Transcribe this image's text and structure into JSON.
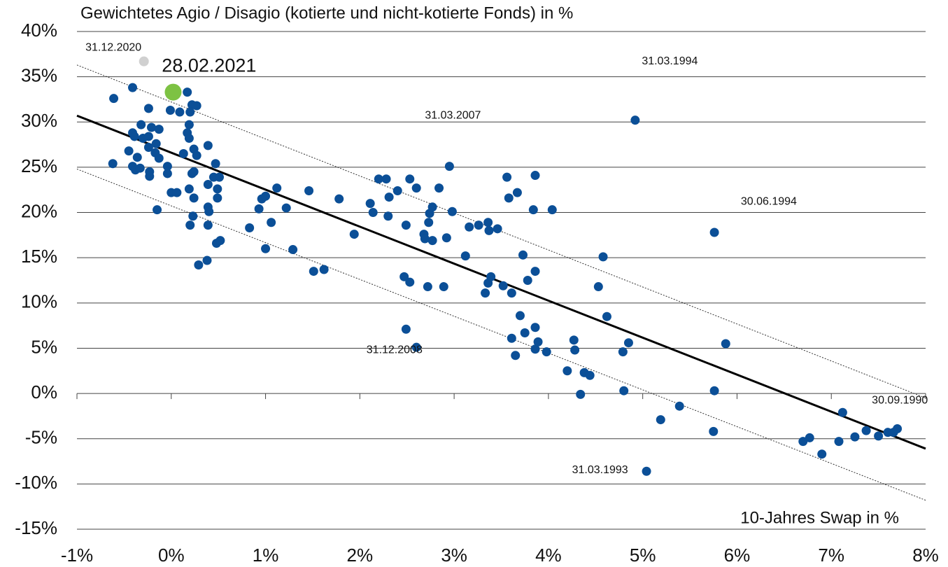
{
  "chart_data": {
    "type": "scatter",
    "title": "Gewichtetes Agio / Disagio (kotierte und nicht-kotierte Fonds) in %",
    "x_label": "10-Jahres Swap in %",
    "xlim": [
      -1,
      8
    ],
    "ylim": [
      -15,
      40
    ],
    "xticks": [
      {
        "value": -1,
        "label": "-1%"
      },
      {
        "value": 0,
        "label": "0%"
      },
      {
        "value": 1,
        "label": "1%"
      },
      {
        "value": 2,
        "label": "2%"
      },
      {
        "value": 3,
        "label": "3%"
      },
      {
        "value": 4,
        "label": "4%"
      },
      {
        "value": 5,
        "label": "5%"
      },
      {
        "value": 6,
        "label": "6%"
      },
      {
        "value": 7,
        "label": "7%"
      },
      {
        "value": 8,
        "label": "8%"
      }
    ],
    "yticks": [
      {
        "value": 40,
        "label": "40%"
      },
      {
        "value": 35,
        "label": "35%"
      },
      {
        "value": 30,
        "label": "30%"
      },
      {
        "value": 25,
        "label": "25%"
      },
      {
        "value": 20,
        "label": "20%"
      },
      {
        "value": 15,
        "label": "15%"
      },
      {
        "value": 10,
        "label": "10%"
      },
      {
        "value": 5,
        "label": "5%"
      },
      {
        "value": 0,
        "label": "0%"
      },
      {
        "value": -5,
        "label": "-5%"
      },
      {
        "value": -10,
        "label": "-10%"
      },
      {
        "value": -15,
        "label": "-15%"
      }
    ],
    "grid": true,
    "points": {
      "color": "#0b4f97",
      "x": [
        -0.61,
        -0.62,
        -0.41,
        -0.45,
        -0.41,
        -0.39,
        -0.36,
        -0.41,
        -0.38,
        -0.33,
        -0.32,
        -0.3,
        -0.24,
        -0.24,
        -0.24,
        -0.21,
        -0.23,
        -0.23,
        -0.16,
        -0.17,
        -0.13,
        -0.13,
        -0.15,
        -0.04,
        -0.04,
        0.0,
        0.06,
        -0.01,
        0.09,
        0.17,
        0.22,
        0.27,
        0.2,
        0.19,
        0.17,
        0.19,
        0.13,
        0.24,
        0.27,
        0.22,
        0.24,
        0.39,
        0.19,
        0.24,
        0.39,
        0.47,
        0.45,
        0.51,
        0.49,
        0.49,
        0.39,
        0.4,
        0.23,
        0.2,
        0.39,
        0.48,
        0.52,
        0.38,
        0.29,
        0.83,
        0.93,
        0.96,
        1.0,
        1.12,
        1.06,
        1.0,
        1.22,
        1.29,
        1.46,
        1.51,
        1.62,
        1.78,
        1.94,
        2.11,
        2.14,
        2.2,
        2.28,
        2.3,
        2.31,
        2.4,
        2.49,
        2.53,
        2.6,
        2.47,
        2.53,
        2.49,
        2.6,
        2.68,
        2.69,
        2.73,
        2.74,
        2.77,
        2.77,
        2.84,
        2.72,
        2.89,
        2.92,
        2.95,
        2.98,
        3.12,
        3.16,
        3.26,
        3.36,
        3.37,
        3.46,
        3.33,
        3.36,
        3.39,
        3.52,
        3.61,
        3.56,
        3.58,
        3.67,
        3.86,
        3.84,
        3.73,
        3.78,
        3.86,
        4.04,
        3.7,
        3.86,
        3.75,
        3.61,
        3.65,
        3.86,
        3.89,
        3.98,
        4.2,
        4.27,
        4.28,
        4.38,
        4.44,
        4.34,
        4.58,
        4.53,
        4.62,
        4.92,
        4.85,
        4.79,
        4.8,
        5.19,
        5.04,
        5.39,
        5.76,
        5.88,
        5.76,
        5.75,
        6.7,
        6.77,
        6.9,
        7.08,
        7.12,
        7.25,
        7.37,
        7.5,
        7.6,
        7.66,
        7.7
      ],
      "y": [
        32.6,
        25.4,
        33.8,
        26.8,
        28.8,
        28.4,
        26.1,
        25.1,
        24.7,
        24.9,
        29.7,
        28.2,
        28.4,
        27.2,
        31.5,
        29.4,
        24.5,
        24.0,
        27.6,
        26.6,
        26.0,
        29.2,
        20.3,
        25.1,
        24.3,
        22.2,
        22.2,
        31.3,
        31.1,
        33.3,
        31.9,
        31.8,
        31.1,
        29.7,
        28.8,
        28.2,
        26.5,
        27.0,
        26.3,
        24.3,
        24.5,
        27.4,
        22.6,
        21.6,
        23.1,
        25.4,
        23.9,
        23.9,
        22.6,
        21.6,
        20.6,
        20.1,
        19.6,
        18.6,
        18.6,
        16.6,
        16.9,
        14.7,
        14.2,
        18.3,
        20.4,
        21.5,
        21.8,
        22.7,
        18.9,
        16.0,
        20.5,
        15.9,
        22.4,
        13.5,
        13.7,
        21.5,
        17.6,
        21.0,
        20.0,
        23.7,
        23.7,
        19.6,
        21.7,
        22.4,
        18.6,
        23.7,
        22.7,
        12.9,
        12.3,
        7.1,
        5.1,
        17.6,
        17.1,
        18.9,
        19.9,
        20.6,
        16.9,
        22.7,
        11.8,
        11.8,
        17.2,
        25.1,
        20.1,
        15.2,
        18.4,
        18.6,
        18.9,
        18.0,
        18.2,
        11.1,
        12.2,
        12.9,
        11.9,
        11.1,
        23.9,
        21.6,
        22.2,
        24.1,
        20.3,
        15.3,
        12.5,
        13.5,
        20.3,
        8.6,
        7.3,
        6.7,
        6.1,
        4.2,
        4.9,
        5.7,
        4.6,
        2.5,
        5.9,
        4.8,
        2.3,
        2.0,
        -0.1,
        15.1,
        11.8,
        8.5,
        30.2,
        5.6,
        4.6,
        0.3,
        -2.9,
        -8.6,
        -1.4,
        17.8,
        5.5,
        0.3,
        -4.2,
        -5.3,
        -4.9,
        -6.7,
        -5.3,
        -2.1,
        -4.8,
        -4.1,
        -4.7,
        -4.3,
        -4.3,
        -3.9
      ]
    },
    "highlights": [
      {
        "x": -0.29,
        "y": 36.7,
        "color": "#d0d0d0"
      },
      {
        "x": 0.02,
        "y": 33.3,
        "color": "#7dc243"
      }
    ],
    "lines": [
      {
        "x": [
          -1,
          8
        ],
        "y": [
          30.7,
          -6.1
        ],
        "color": "#000000",
        "style": "solid"
      },
      {
        "x": [
          -1,
          8
        ],
        "y": [
          36.3,
          -0.5
        ],
        "color": "#333333",
        "style": "dashed"
      },
      {
        "x": [
          -1,
          8
        ],
        "y": [
          24.8,
          -11.8
        ],
        "color": "#333333",
        "style": "dashed"
      }
    ],
    "annotations": [
      {
        "text": "31.12.2020",
        "x": -0.91,
        "y": 38.2
      },
      {
        "text": "28.02.2021",
        "x": -0.1,
        "y": 36.1
      },
      {
        "text": "31.03.1994",
        "x": 4.99,
        "y": 36.7
      },
      {
        "text": "31.03.2007",
        "x": 2.69,
        "y": 30.7
      },
      {
        "text": "30.06.1994",
        "x": 6.04,
        "y": 21.2
      },
      {
        "text": "31.12.2008",
        "x": 2.07,
        "y": 4.8
      },
      {
        "text": "30.09.1990",
        "x": 7.43,
        "y": -0.8
      },
      {
        "text": "31.03.1993",
        "x": 4.25,
        "y": -8.5
      }
    ]
  }
}
